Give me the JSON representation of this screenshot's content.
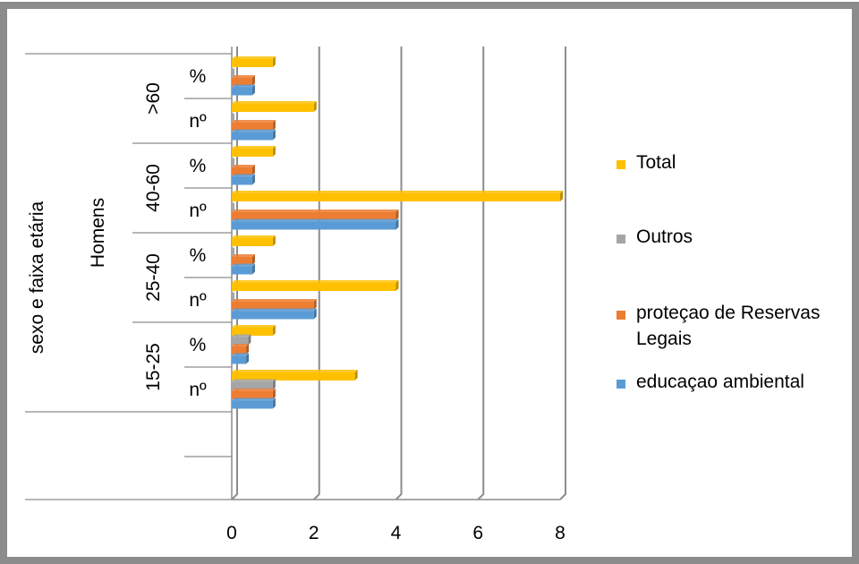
{
  "chart_data": {
    "type": "bar",
    "orientation": "horizontal",
    "title": "",
    "xlabel": "",
    "ylabel": "sexo e faixa etária",
    "group_label": "Homens",
    "age_groups": [
      ">60",
      "40-60",
      "25-40",
      "15-25"
    ],
    "categories": [
      {
        "age": ">60",
        "measure": "%"
      },
      {
        "age": ">60",
        "measure": "nº"
      },
      {
        "age": "40-60",
        "measure": "%"
      },
      {
        "age": "40-60",
        "measure": "nº"
      },
      {
        "age": "25-40",
        "measure": "%"
      },
      {
        "age": "25-40",
        "measure": "nº"
      },
      {
        "age": "15-25",
        "measure": "%"
      },
      {
        "age": "15-25",
        "measure": "nº"
      }
    ],
    "series": [
      {
        "name": "Total",
        "color": "#FFC000",
        "values": [
          1,
          2,
          1,
          8,
          1,
          4,
          1,
          3
        ]
      },
      {
        "name": "Outros",
        "color": "#A5A5A5",
        "values": [
          0,
          0,
          0,
          0,
          0,
          0,
          0.4,
          1
        ]
      },
      {
        "name": "proteçao de Reservas Legais",
        "color": "#ED7D31",
        "values": [
          0.5,
          1,
          0.5,
          4,
          0.5,
          2,
          0.35,
          1
        ]
      },
      {
        "name": "educaçao ambiental",
        "color": "#5B9BD5",
        "values": [
          0.5,
          1,
          0.5,
          4,
          0.5,
          2,
          0.35,
          1
        ]
      }
    ],
    "legend_order": [
      "Total",
      "Outros",
      "proteçao de Reservas Legais",
      "educaçao ambiental"
    ],
    "legend_position": "right",
    "xlim": [
      0,
      8
    ],
    "xticks": [
      0,
      2,
      4,
      6,
      8
    ],
    "grid": true
  }
}
